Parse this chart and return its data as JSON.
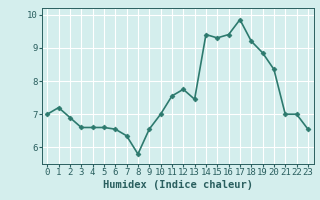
{
  "x": [
    0,
    1,
    2,
    3,
    4,
    5,
    6,
    7,
    8,
    9,
    10,
    11,
    12,
    13,
    14,
    15,
    16,
    17,
    18,
    19,
    20,
    21,
    22,
    23
  ],
  "y": [
    7.0,
    7.2,
    6.9,
    6.6,
    6.6,
    6.6,
    6.55,
    6.35,
    5.8,
    6.55,
    7.0,
    7.55,
    7.75,
    7.45,
    9.4,
    9.3,
    9.4,
    9.85,
    9.2,
    8.85,
    8.35,
    7.0,
    7.0,
    6.55
  ],
  "line_color": "#2d7a6e",
  "marker": "D",
  "marker_size": 2.5,
  "linewidth": 1.2,
  "xlabel": "Humidex (Indice chaleur)",
  "xlim": [
    -0.5,
    23.5
  ],
  "ylim": [
    5.5,
    10.2
  ],
  "yticks": [
    6,
    7,
    8,
    9,
    10
  ],
  "xticks": [
    0,
    1,
    2,
    3,
    4,
    5,
    6,
    7,
    8,
    9,
    10,
    11,
    12,
    13,
    14,
    15,
    16,
    17,
    18,
    19,
    20,
    21,
    22,
    23
  ],
  "bg_color": "#d4eeed",
  "grid_color": "#ffffff",
  "tick_color": "#2a5f5f",
  "label_color": "#2a5f5f",
  "xlabel_fontsize": 7.5,
  "tick_fontsize": 6.5
}
